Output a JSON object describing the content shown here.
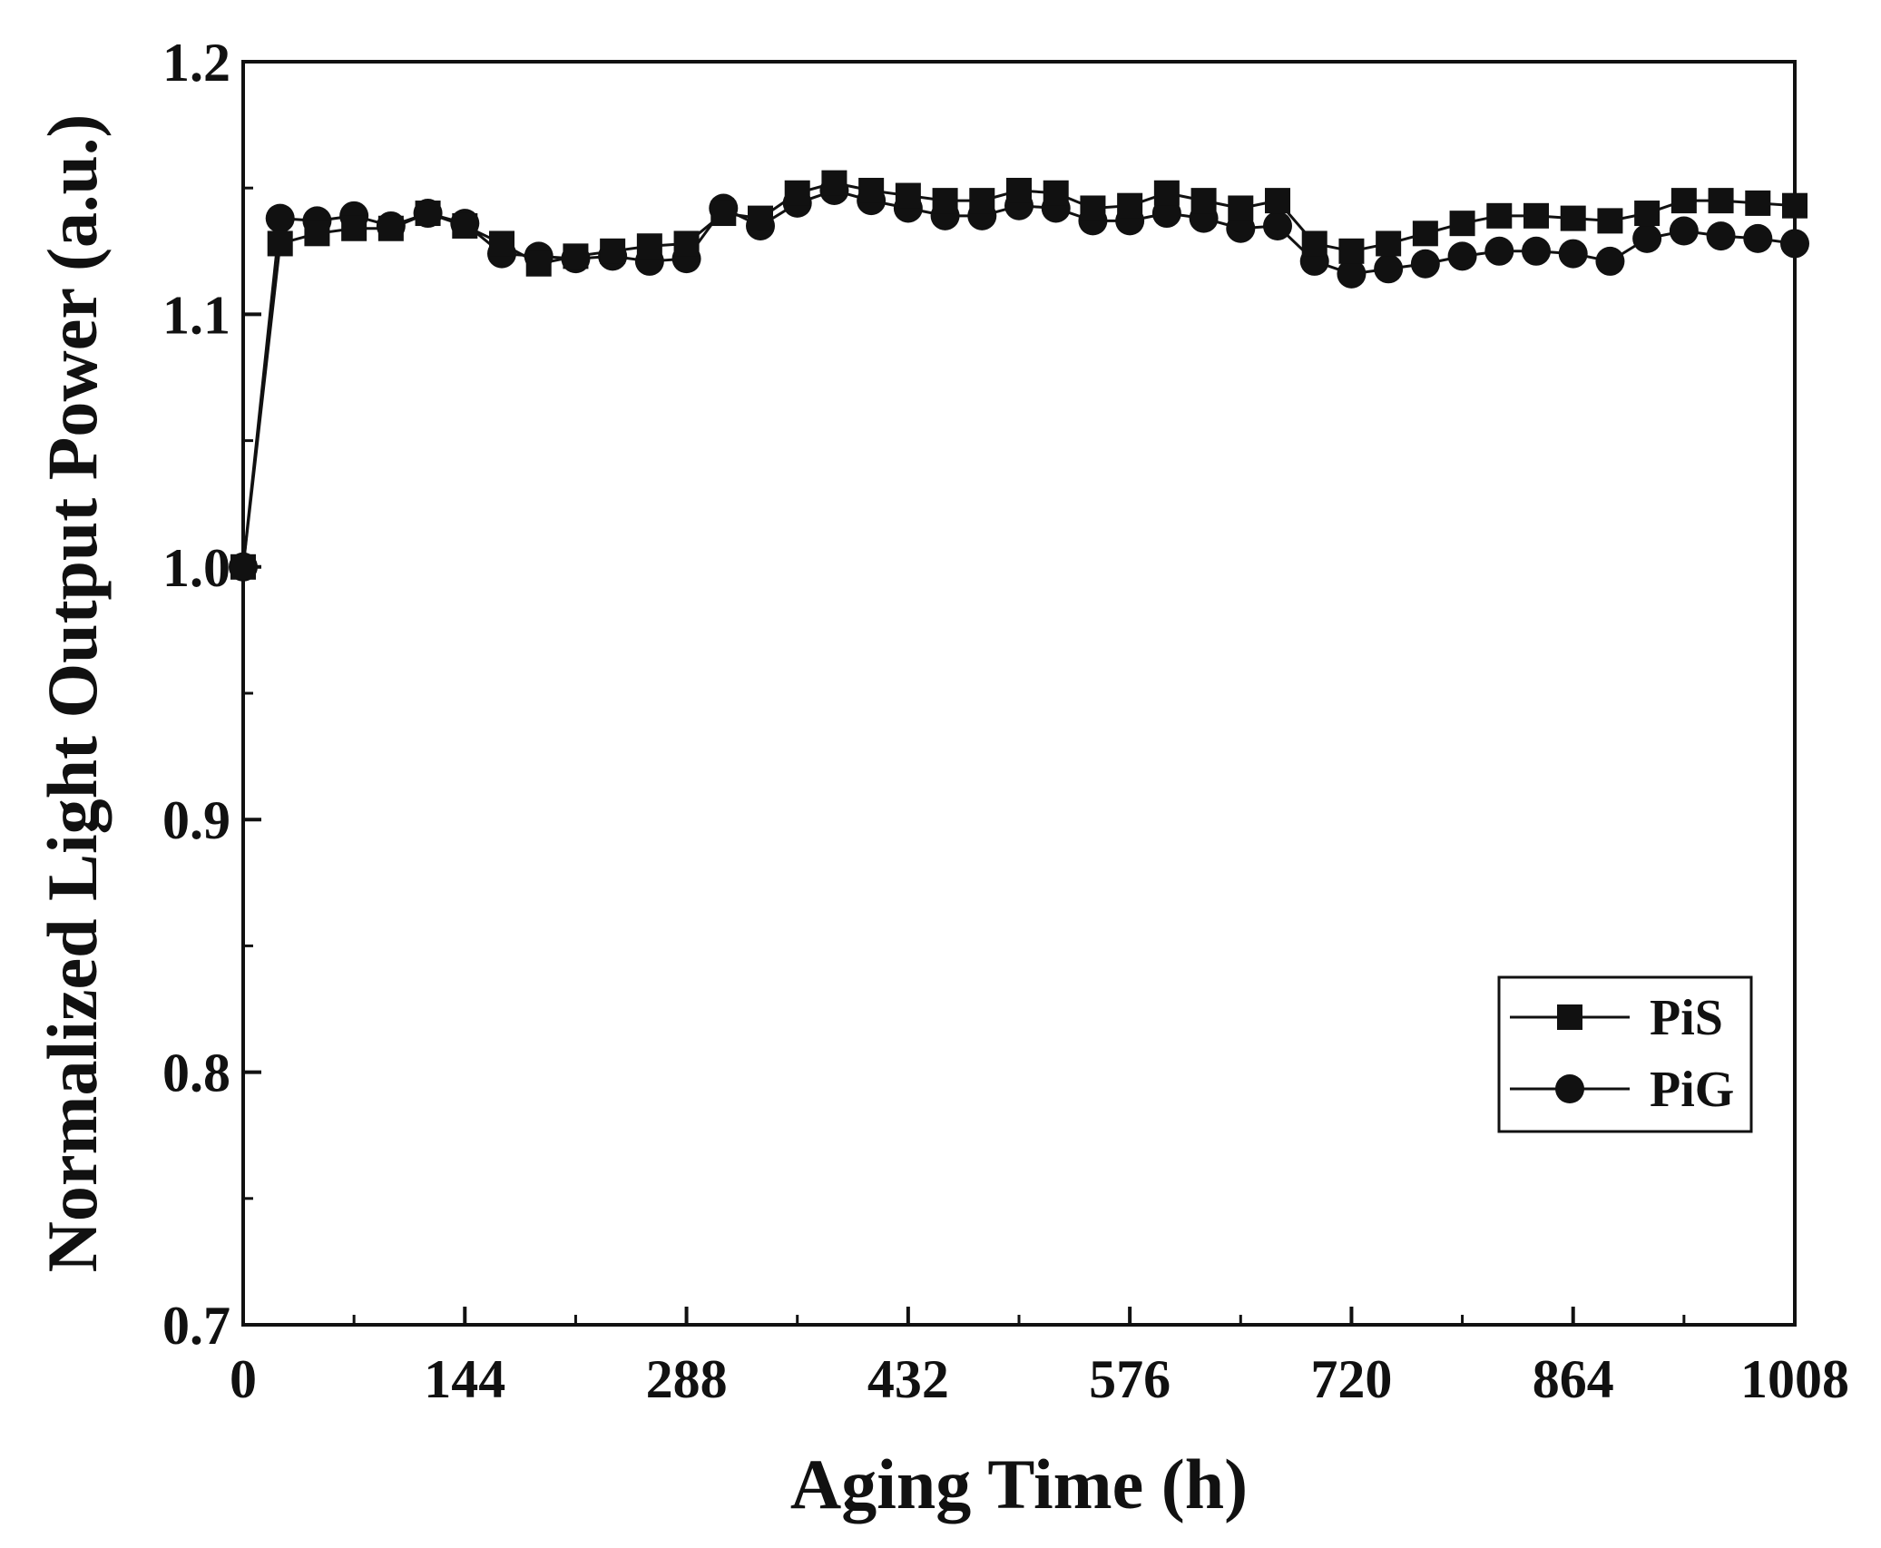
{
  "chart_data": {
    "type": "line",
    "title": "",
    "xlabel": "Aging Time (h)",
    "ylabel": "Normalized Light Output Power (a.u.)",
    "xlim": [
      0,
      1008
    ],
    "ylim": [
      0.7,
      1.2
    ],
    "xticks": [
      0,
      144,
      288,
      432,
      576,
      720,
      864,
      1008
    ],
    "xtick_labels": [
      "0",
      "144",
      "288",
      "432",
      "576",
      "720",
      "864",
      "1008"
    ],
    "yticks": [
      0.7,
      0.8,
      0.9,
      1.0,
      1.1,
      1.2
    ],
    "ytick_labels": [
      "0.7",
      "0.8",
      "0.9",
      "1.0",
      "1.1",
      "1.2"
    ],
    "grid": false,
    "legend_position": "lower-right",
    "x": [
      0,
      24,
      48,
      72,
      96,
      120,
      144,
      168,
      192,
      216,
      240,
      264,
      288,
      312,
      336,
      360,
      384,
      408,
      432,
      456,
      480,
      504,
      528,
      552,
      576,
      600,
      624,
      648,
      672,
      696,
      720,
      744,
      768,
      792,
      816,
      840,
      864,
      888,
      912,
      936,
      960,
      984,
      1008
    ],
    "series": [
      {
        "name": "PiS",
        "marker": "square",
        "values": [
          1.0,
          1.128,
          1.132,
          1.134,
          1.134,
          1.14,
          1.135,
          1.128,
          1.12,
          1.123,
          1.125,
          1.127,
          1.128,
          1.14,
          1.138,
          1.148,
          1.152,
          1.149,
          1.147,
          1.145,
          1.145,
          1.149,
          1.148,
          1.142,
          1.143,
          1.148,
          1.145,
          1.142,
          1.145,
          1.128,
          1.125,
          1.128,
          1.132,
          1.136,
          1.139,
          1.139,
          1.138,
          1.137,
          1.14,
          1.145,
          1.145,
          1.144,
          1.143
        ]
      },
      {
        "name": "PiG",
        "marker": "circle",
        "values": [
          1.0,
          1.138,
          1.137,
          1.139,
          1.135,
          1.14,
          1.136,
          1.124,
          1.123,
          1.122,
          1.123,
          1.121,
          1.122,
          1.142,
          1.135,
          1.144,
          1.149,
          1.145,
          1.142,
          1.139,
          1.139,
          1.143,
          1.142,
          1.137,
          1.137,
          1.14,
          1.138,
          1.134,
          1.135,
          1.121,
          1.116,
          1.118,
          1.12,
          1.123,
          1.125,
          1.125,
          1.124,
          1.121,
          1.13,
          1.133,
          1.131,
          1.13,
          1.128
        ]
      }
    ]
  },
  "colors": {
    "series": "#111111",
    "axis": "#111111",
    "background": "#ffffff"
  },
  "legend_icons": [
    "filled-square-marker",
    "filled-circle-marker"
  ]
}
